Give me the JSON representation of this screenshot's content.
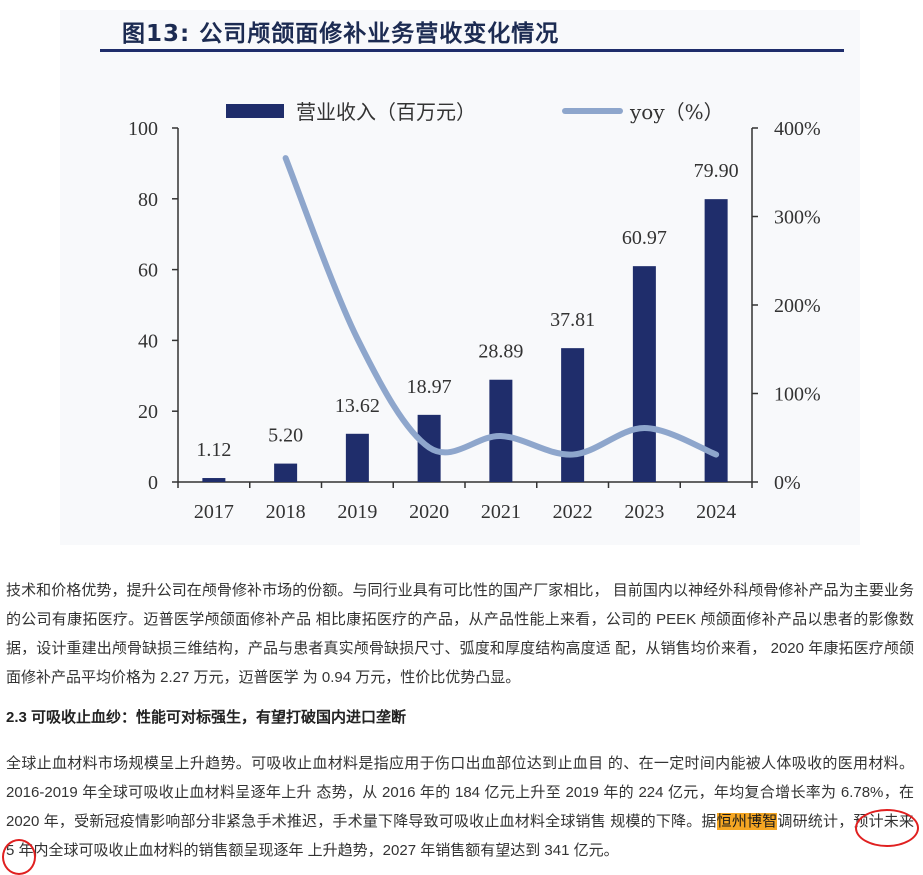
{
  "figure": {
    "title": "图13: 公司颅颌面修补业务营收变化情况"
  },
  "chart_data": {
    "type": "bar",
    "categories": [
      "2017",
      "2018",
      "2019",
      "2020",
      "2021",
      "2022",
      "2023",
      "2024"
    ],
    "series": [
      {
        "name": "营业收入（百万元）",
        "type": "bar",
        "axis": "left",
        "color": "#1f2d6b",
        "values": [
          1.12,
          5.2,
          13.62,
          18.97,
          28.89,
          37.81,
          60.97,
          79.9
        ],
        "labels": [
          "1.12",
          "5.20",
          "13.62",
          "18.97",
          "28.89",
          "37.81",
          "60.97",
          "79.90"
        ]
      },
      {
        "name": "yoy（%）",
        "type": "line",
        "axis": "right",
        "color": "#8ea6cc",
        "values": [
          null,
          366,
          162,
          39,
          52,
          31,
          61,
          31
        ]
      }
    ],
    "y_left": {
      "range": [
        0,
        100
      ],
      "ticks": [
        0,
        20,
        40,
        60,
        80,
        100
      ],
      "tick_labels": [
        "0",
        "20",
        "40",
        "60",
        "80",
        "100"
      ]
    },
    "y_right": {
      "range": [
        0,
        400
      ],
      "ticks": [
        0,
        100,
        200,
        300,
        400
      ],
      "tick_labels": [
        "0%",
        "100%",
        "200%",
        "300%",
        "400%"
      ]
    },
    "legend_position": "top",
    "grid": false
  },
  "article": {
    "para1": "技术和价格优势，提升公司在颅骨修补市场的份额。与同行业具有可比性的国产厂家相比， 目前国内以神经外科颅骨修补产品为主要业务的公司有康拓医疗。迈普医学颅颌面修补产品 相比康拓医疗的产品，从产品性能上来看，公司的 PEEK 颅颌面修补产品以患者的影像数 据，设计重建出颅骨缺损三维结构，产品与患者真实颅骨缺损尺寸、弧度和厚度结构高度适 配，从销售均价来看， 2020 年康拓医疗颅颌面修补产品平均价格为 2.27 万元，迈普医学 为 0.94 万元，性价比优势凸显。",
    "heading": "2.3 可吸收止血纱：性能可对标强生，有望打破国内进口垄断",
    "para2_main": "全球止血材料市场规模呈上升趋势。可吸收止血材料是指应用于伤口出血部位达到止血目 的、在一定时间内能被人体吸收的医用材料。2016-2019 年全球可吸收止血材料呈逐年上升 态势，从 2016 年的 184 亿元上升至 2019 年的 224 亿元，年均复合增长率为 6.78%，在 2020 年，受新冠疫情影响部分非紧急手术推迟，手术量下降导致可吸收止血材料全球销售 规模的下降。据",
    "para2_highlight": "恒州博智",
    "para2_tail": "调研统计，预计未来 5 年内全球可吸收止血材料的销售额呈现逐年 上升趋势，2027 年销售额有望达到 341 亿元。"
  }
}
